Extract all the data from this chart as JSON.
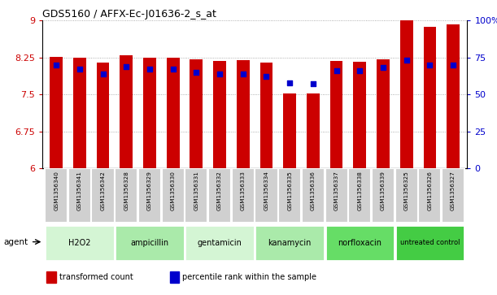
{
  "title": "GDS5160 / AFFX-Ec-J01636-2_s_at",
  "samples": [
    "GSM1356340",
    "GSM1356341",
    "GSM1356342",
    "GSM1356328",
    "GSM1356329",
    "GSM1356330",
    "GSM1356331",
    "GSM1356332",
    "GSM1356333",
    "GSM1356334",
    "GSM1356335",
    "GSM1356336",
    "GSM1356337",
    "GSM1356338",
    "GSM1356339",
    "GSM1356325",
    "GSM1356326",
    "GSM1356327"
  ],
  "bar_values": [
    8.26,
    8.24,
    8.15,
    8.3,
    8.24,
    8.24,
    8.22,
    8.18,
    8.19,
    8.15,
    7.52,
    7.52,
    8.18,
    8.17,
    8.22,
    9.0,
    8.88,
    8.92
  ],
  "dot_values": [
    70,
    67,
    64,
    69,
    67,
    67,
    65,
    64,
    64,
    62,
    58,
    57,
    66,
    66,
    68,
    73,
    70,
    70
  ],
  "bar_color": "#cc0000",
  "dot_color": "#0000cc",
  "ylim_left": [
    6,
    9
  ],
  "ylim_right": [
    0,
    100
  ],
  "yticks_left": [
    6,
    6.75,
    7.5,
    8.25,
    9
  ],
  "yticks_right": [
    0,
    25,
    50,
    75,
    100
  ],
  "ytick_labels_left": [
    "6",
    "6.75",
    "7.5",
    "8.25",
    "9"
  ],
  "ytick_labels_right": [
    "0",
    "25",
    "50",
    "75",
    "100%"
  ],
  "groups": [
    {
      "label": "H2O2",
      "start": 0,
      "end": 3,
      "color": "#d4f5d4"
    },
    {
      "label": "ampicillin",
      "start": 3,
      "end": 6,
      "color": "#aaeaaa"
    },
    {
      "label": "gentamicin",
      "start": 6,
      "end": 9,
      "color": "#d4f5d4"
    },
    {
      "label": "kanamycin",
      "start": 9,
      "end": 12,
      "color": "#aaeaaa"
    },
    {
      "label": "norfloxacin",
      "start": 12,
      "end": 15,
      "color": "#66dd66"
    },
    {
      "label": "untreated control",
      "start": 15,
      "end": 18,
      "color": "#44cc44"
    }
  ],
  "agent_label": "agent",
  "legend_bar_label": "transformed count",
  "legend_dot_label": "percentile rank within the sample",
  "bar_width": 0.55,
  "background_color": "#ffffff"
}
